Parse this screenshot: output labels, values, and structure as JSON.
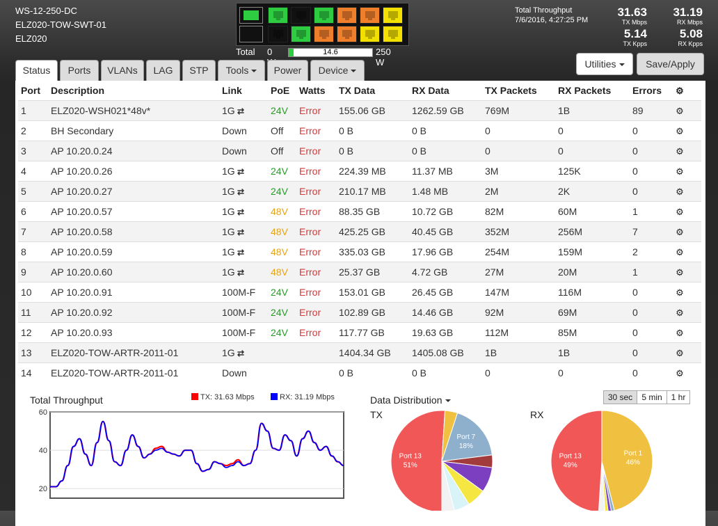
{
  "device": {
    "model": "WS-12-250-DC",
    "name": "ELZ020-TOW-SWT-01",
    "site": "ELZ020"
  },
  "ports_visual": {
    "mgmt": [
      {
        "color": "#2ecc40"
      },
      {
        "color": "#111111"
      }
    ],
    "top": [
      "#2ecc40",
      "#111111",
      "#2ecc40",
      "#f07f2c",
      "#f07f2c",
      "#f2e000"
    ],
    "bottom": [
      "#111111",
      "#2ecc40",
      "#f07f2c",
      "#f07f2c",
      "#f2e000",
      "#f2e000"
    ]
  },
  "power": {
    "label": "Total",
    "min": "0 W",
    "value": "14.6",
    "max": "250 W",
    "fraction": 0.058
  },
  "throughput": {
    "label": "Total Throughput",
    "timestamp": "7/6/2016, 4:27:25 PM",
    "tx_mbps": "31.63",
    "tx_mbps_unit": "TX Mbps",
    "rx_mbps": "31.19",
    "rx_mbps_unit": "RX Mbps",
    "tx_kpps": "5.14",
    "tx_kpps_unit": "TX Kpps",
    "rx_kpps": "5.08",
    "rx_kpps_unit": "RX Kpps"
  },
  "buttons": {
    "utilities": "Utilities",
    "save": "Save/Apply"
  },
  "tabs": [
    "Status",
    "Ports",
    "VLANs",
    "LAG",
    "STP",
    "Tools",
    "Power",
    "Device"
  ],
  "table": {
    "headers": [
      "Port",
      "Description",
      "Link",
      "PoE",
      "Watts",
      "TX Data",
      "RX Data",
      "TX Packets",
      "RX Packets",
      "Errors"
    ],
    "rows": [
      {
        "port": "1",
        "desc": "ELZ020-WSH021*48v*",
        "link": "1G",
        "swap": true,
        "poe": "24V",
        "watts": "Error",
        "tx": "155.06 GB",
        "rx": "1262.59 GB",
        "txp": "769M",
        "rxp": "1B",
        "err": "89"
      },
      {
        "port": "2",
        "desc": "BH Secondary",
        "link": "Down",
        "swap": false,
        "poe": "Off",
        "watts": "Error",
        "tx": "0 B",
        "rx": "0 B",
        "txp": "0",
        "rxp": "0",
        "err": "0"
      },
      {
        "port": "3",
        "desc": "AP 10.20.0.24",
        "link": "Down",
        "swap": false,
        "poe": "Off",
        "watts": "Error",
        "tx": "0 B",
        "rx": "0 B",
        "txp": "0",
        "rxp": "0",
        "err": "0"
      },
      {
        "port": "4",
        "desc": "AP 10.20.0.26",
        "link": "1G",
        "swap": true,
        "poe": "24V",
        "watts": "Error",
        "tx": "224.39 MB",
        "rx": "11.37 MB",
        "txp": "3M",
        "rxp": "125K",
        "err": "0"
      },
      {
        "port": "5",
        "desc": "AP 10.20.0.27",
        "link": "1G",
        "swap": true,
        "poe": "24V",
        "watts": "Error",
        "tx": "210.17 MB",
        "rx": "1.48 MB",
        "txp": "2M",
        "rxp": "2K",
        "err": "0"
      },
      {
        "port": "6",
        "desc": "AP 10.20.0.57",
        "link": "1G",
        "swap": true,
        "poe": "48V",
        "watts": "Error",
        "tx": "88.35 GB",
        "rx": "10.72 GB",
        "txp": "82M",
        "rxp": "60M",
        "err": "1"
      },
      {
        "port": "7",
        "desc": "AP 10.20.0.58",
        "link": "1G",
        "swap": true,
        "poe": "48V",
        "watts": "Error",
        "tx": "425.25 GB",
        "rx": "40.45 GB",
        "txp": "352M",
        "rxp": "256M",
        "err": "7"
      },
      {
        "port": "8",
        "desc": "AP 10.20.0.59",
        "link": "1G",
        "swap": true,
        "poe": "48V",
        "watts": "Error",
        "tx": "335.03 GB",
        "rx": "17.96 GB",
        "txp": "254M",
        "rxp": "159M",
        "err": "2"
      },
      {
        "port": "9",
        "desc": "AP 10.20.0.60",
        "link": "1G",
        "swap": true,
        "poe": "48V",
        "watts": "Error",
        "tx": "25.37 GB",
        "rx": "4.72 GB",
        "txp": "27M",
        "rxp": "20M",
        "err": "1"
      },
      {
        "port": "10",
        "desc": "AP 10.20.0.91",
        "link": "100M-F",
        "swap": false,
        "poe": "24V",
        "watts": "Error",
        "tx": "153.01 GB",
        "rx": "26.45 GB",
        "txp": "147M",
        "rxp": "116M",
        "err": "0"
      },
      {
        "port": "11",
        "desc": "AP 10.20.0.92",
        "link": "100M-F",
        "swap": false,
        "poe": "24V",
        "watts": "Error",
        "tx": "102.89 GB",
        "rx": "14.46 GB",
        "txp": "92M",
        "rxp": "69M",
        "err": "0"
      },
      {
        "port": "12",
        "desc": "AP 10.20.0.93",
        "link": "100M-F",
        "swap": false,
        "poe": "24V",
        "watts": "Error",
        "tx": "117.77 GB",
        "rx": "19.63 GB",
        "txp": "112M",
        "rxp": "85M",
        "err": "0"
      },
      {
        "port": "13",
        "desc": "ELZ020-TOW-ARTR-2011-01",
        "link": "1G",
        "swap": true,
        "poe": "",
        "watts": "",
        "tx": "1404.34 GB",
        "rx": "1405.08 GB",
        "txp": "1B",
        "rxp": "1B",
        "err": "0"
      },
      {
        "port": "14",
        "desc": "ELZ020-TOW-ARTR-2011-01",
        "link": "Down",
        "swap": false,
        "poe": "",
        "watts": "",
        "tx": "0 B",
        "rx": "0 B",
        "txp": "0",
        "rxp": "0",
        "err": "0"
      }
    ]
  },
  "throughput_chart": {
    "title": "Total Throughput",
    "tx_legend": "TX: 31.63 Mbps",
    "rx_legend": "RX: 31.19 Mbps",
    "tx_color": "#ff0000",
    "rx_color": "#0000ff",
    "y_unit": "Mbps",
    "y_ticks": [
      "60",
      "40",
      "20"
    ]
  },
  "distribution": {
    "title": "Data Distribution",
    "tx_label": "TX",
    "rx_label": "RX",
    "ranges": [
      "30 sec",
      "5 min",
      "1 hr"
    ]
  },
  "chart_data": [
    {
      "type": "line",
      "title": "Total Throughput",
      "ylabel": "Mbps",
      "ylim": [
        15,
        60
      ],
      "series": [
        {
          "name": "TX: 31.63 Mbps",
          "color": "#ff0000",
          "values": [
            21,
            21,
            24,
            32,
            42,
            46,
            38,
            32,
            44,
            55,
            45,
            34,
            32,
            40,
            48,
            42,
            36,
            38,
            41,
            42,
            39,
            38,
            37,
            40,
            40,
            33,
            29,
            30,
            34,
            33,
            32,
            33,
            35,
            32,
            33,
            40,
            54,
            50,
            41,
            40,
            48,
            45,
            37,
            46,
            50,
            44,
            40,
            42,
            37,
            34,
            32
          ]
        },
        {
          "name": "RX: 31.19 Mbps",
          "color": "#0000ff",
          "values": [
            21,
            21,
            24,
            32,
            42,
            46,
            38,
            32,
            44,
            55,
            45,
            34,
            32,
            40,
            48,
            42,
            36,
            38,
            40,
            41,
            39,
            38,
            37,
            40,
            40,
            33,
            29,
            30,
            34,
            33,
            31,
            32,
            34,
            32,
            33,
            40,
            54,
            50,
            41,
            40,
            48,
            45,
            37,
            46,
            50,
            44,
            40,
            42,
            37,
            34,
            32
          ]
        }
      ]
    },
    {
      "type": "pie",
      "title": "TX",
      "slices": [
        {
          "label": "Port 13",
          "value": 51,
          "color": "#f25757"
        },
        {
          "label": "",
          "value": 4,
          "color": "#f0c040"
        },
        {
          "label": "Port 7",
          "value": 18,
          "color": "#8fb0cc"
        },
        {
          "label": "",
          "value": 4,
          "color": "#a23b3b"
        },
        {
          "label": "",
          "value": 8,
          "color": "#7b3fbf"
        },
        {
          "label": "",
          "value": 6,
          "color": "#f5e642"
        },
        {
          "label": "",
          "value": 5,
          "color": "#d8f4f8"
        },
        {
          "label": "",
          "value": 4,
          "color": "#f2f2f2"
        }
      ]
    },
    {
      "type": "pie",
      "title": "RX",
      "slices": [
        {
          "label": "Port 1",
          "value": 46,
          "color": "#f0c040"
        },
        {
          "label": "",
          "value": 1,
          "color": "#8fb0cc"
        },
        {
          "label": "",
          "value": 1,
          "color": "#7b3fbf"
        },
        {
          "label": "",
          "value": 1,
          "color": "#f5e642"
        },
        {
          "label": "",
          "value": 2,
          "color": "#f2f2f2"
        },
        {
          "label": "Port 13",
          "value": 49,
          "color": "#f25757"
        }
      ]
    }
  ]
}
